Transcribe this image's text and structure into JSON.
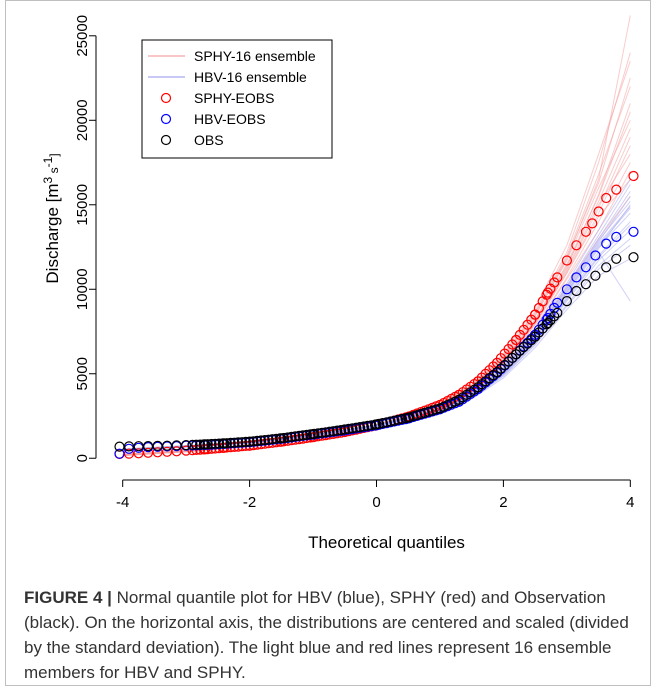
{
  "chart_data": {
    "type": "scatter",
    "xlabel": "Theoretical quantiles",
    "ylabel": "Discharge [m³ s⁻¹]",
    "ylabel_parts": {
      "base": "Discharge [m",
      "sup1": "3",
      "mid": " s",
      "sup2": "-1",
      "end": "]"
    },
    "xlim": [
      -4.2,
      4.2
    ],
    "ylim": [
      -400,
      27000
    ],
    "xticks": [
      -4,
      -2,
      0,
      2,
      4
    ],
    "xtick_labels": [
      "-4",
      "-2",
      "0",
      "2",
      "4"
    ],
    "yticks": [
      0,
      5000,
      10000,
      15000,
      20000,
      25000
    ],
    "ytick_labels": [
      "0",
      "5000",
      "10000",
      "15000",
      "20000",
      "25000"
    ],
    "grid": false,
    "legend_position": "top-left",
    "legend": [
      {
        "label": "SPHY-16 ensemble",
        "kind": "line",
        "color": "#f4a3a3"
      },
      {
        "label": "HBV-16 ensemble",
        "kind": "line",
        "color": "#a9a9f0"
      },
      {
        "label": "SPHY-EOBS",
        "kind": "point",
        "color": "#ff0000"
      },
      {
        "label": "HBV-EOBS",
        "kind": "point",
        "color": "#0000ff"
      },
      {
        "label": "OBS",
        "kind": "point",
        "color": "#000000"
      }
    ],
    "series": [
      {
        "name": "SPHY-EOBS",
        "color": "#ff0000",
        "x": [
          -4.05,
          -3.9,
          -3.75,
          -3.6,
          -3.45,
          -3.3,
          -3.15,
          -3.0,
          -2.7,
          -2.4,
          -2.0,
          -1.5,
          -1.0,
          -0.5,
          0.0,
          0.5,
          1.0,
          1.3,
          1.6,
          1.9,
          2.2,
          2.5,
          2.7,
          2.85,
          3.0,
          3.15,
          3.3,
          3.4,
          3.5,
          3.62,
          3.78,
          4.05
        ],
        "y": [
          250,
          270,
          290,
          320,
          350,
          380,
          410,
          450,
          530,
          620,
          750,
          980,
          1250,
          1550,
          1950,
          2450,
          3150,
          3750,
          4550,
          5650,
          7000,
          8500,
          9800,
          10700,
          11700,
          12600,
          13400,
          13900,
          14600,
          15400,
          15900,
          16700
        ]
      },
      {
        "name": "HBV-EOBS",
        "color": "#0000ff",
        "x": [
          -4.05,
          -3.9,
          -3.75,
          -3.6,
          -3.45,
          -3.3,
          -3.15,
          -3.0,
          -2.7,
          -2.4,
          -2.0,
          -1.5,
          -1.0,
          -0.5,
          0.0,
          0.5,
          1.0,
          1.3,
          1.6,
          1.9,
          2.2,
          2.5,
          2.7,
          2.85,
          3.0,
          3.15,
          3.3,
          3.45,
          3.62,
          3.78,
          4.05
        ],
        "y": [
          270,
          560,
          620,
          660,
          680,
          700,
          720,
          740,
          790,
          850,
          950,
          1150,
          1400,
          1650,
          1950,
          2350,
          2900,
          3350,
          4100,
          5050,
          6150,
          7300,
          8300,
          9200,
          10000,
          10700,
          11300,
          12000,
          12700,
          13100,
          13400
        ]
      },
      {
        "name": "OBS",
        "color": "#000000",
        "x": [
          -4.05,
          -3.9,
          -3.75,
          -3.6,
          -3.45,
          -3.3,
          -3.15,
          -3.0,
          -2.7,
          -2.4,
          -2.0,
          -1.5,
          -1.0,
          -0.5,
          0.0,
          0.5,
          1.0,
          1.3,
          1.6,
          1.9,
          2.2,
          2.5,
          2.7,
          2.85,
          3.0,
          3.15,
          3.3,
          3.45,
          3.62,
          3.78,
          4.05
        ],
        "y": [
          690,
          700,
          710,
          720,
          730,
          740,
          760,
          780,
          820,
          880,
          980,
          1180,
          1430,
          1700,
          2000,
          2400,
          2950,
          3450,
          4200,
          5100,
          6150,
          7200,
          8000,
          8600,
          9300,
          9900,
          10300,
          10800,
          11300,
          11800,
          11900
        ]
      }
    ],
    "ensembles": [
      {
        "name": "SPHY-16 ensemble",
        "color": "#f4a3a3",
        "x": [
          -4.0,
          -3.0,
          -2.0,
          -1.0,
          0.0,
          1.0,
          1.5,
          2.0,
          2.5,
          3.0,
          3.5,
          4.0
        ],
        "members_y": [
          [
            150,
            380,
            720,
            1200,
            1900,
            3100,
            4100,
            5800,
            8200,
            11500,
            15500,
            20500
          ],
          [
            200,
            420,
            760,
            1250,
            1950,
            3150,
            4200,
            5900,
            8400,
            11800,
            16500,
            26200
          ],
          [
            180,
            400,
            740,
            1220,
            1920,
            3050,
            4000,
            5600,
            7900,
            11000,
            14500,
            18500
          ],
          [
            220,
            440,
            780,
            1280,
            1980,
            3200,
            4300,
            6100,
            8700,
            12200,
            17500,
            24000
          ],
          [
            170,
            390,
            730,
            1210,
            1900,
            3000,
            3950,
            5500,
            7700,
            10600,
            13500,
            17000
          ],
          [
            240,
            460,
            800,
            1300,
            2000,
            3250,
            4350,
            6200,
            8900,
            12600,
            18000,
            23500
          ],
          [
            160,
            380,
            720,
            1190,
            1880,
            2950,
            3850,
            5300,
            7400,
            10200,
            13000,
            15500
          ],
          [
            210,
            430,
            770,
            1260,
            1960,
            3120,
            4150,
            5800,
            8200,
            11400,
            15200,
            19500
          ],
          [
            190,
            410,
            750,
            1240,
            1940,
            3080,
            4050,
            5700,
            8000,
            11100,
            14800,
            19000
          ],
          [
            230,
            450,
            790,
            1290,
            1990,
            3220,
            4280,
            6050,
            8600,
            12000,
            16800,
            22000
          ],
          [
            175,
            395,
            735,
            1215,
            1910,
            3020,
            3980,
            5550,
            7750,
            10700,
            14000,
            17500
          ],
          [
            205,
            425,
            765,
            1255,
            1955,
            3110,
            4120,
            5750,
            8100,
            11300,
            15600,
            21000
          ],
          [
            185,
            405,
            745,
            1230,
            1930,
            3060,
            4020,
            5650,
            7950,
            10950,
            14300,
            16500
          ],
          [
            215,
            435,
            775,
            1270,
            1970,
            3170,
            4220,
            5950,
            8450,
            11700,
            16000,
            20000
          ],
          [
            195,
            415,
            755,
            1245,
            1945,
            3090,
            4080,
            5720,
            8050,
            11200,
            15000,
            18000
          ],
          [
            225,
            445,
            785,
            1285,
            1985,
            3210,
            4260,
            6000,
            8550,
            11900,
            16300,
            22500
          ]
        ]
      },
      {
        "name": "HBV-16 ensemble",
        "color": "#a9a9f0",
        "x": [
          -4.0,
          -3.0,
          -2.0,
          -1.0,
          0.0,
          1.0,
          1.5,
          2.0,
          2.5,
          3.0,
          3.5,
          4.0
        ],
        "members_y": [
          [
            500,
            700,
            920,
            1350,
            1900,
            2850,
            3700,
            5100,
            7100,
            9700,
            12400,
            15000
          ],
          [
            520,
            720,
            940,
            1380,
            1930,
            2900,
            3800,
            5250,
            7300,
            10000,
            12800,
            15500
          ],
          [
            480,
            680,
            900,
            1320,
            1870,
            2800,
            3600,
            4950,
            6850,
            9300,
            11700,
            13500
          ],
          [
            540,
            740,
            960,
            1400,
            1950,
            2950,
            3850,
            5350,
            7450,
            10200,
            13200,
            16200
          ],
          [
            470,
            670,
            890,
            1300,
            1850,
            2760,
            3550,
            4850,
            6700,
            9000,
            11200,
            12600
          ],
          [
            510,
            710,
            930,
            1360,
            1910,
            2870,
            3750,
            5150,
            7200,
            9850,
            12600,
            14800
          ],
          [
            490,
            690,
            910,
            1340,
            1890,
            2830,
            3650,
            5000,
            6950,
            9450,
            12000,
            14000
          ],
          [
            530,
            730,
            950,
            1390,
            1940,
            2920,
            3820,
            5300,
            7380,
            10100,
            13000,
            15800
          ],
          [
            460,
            660,
            880,
            1290,
            1840,
            2740,
            3500,
            4750,
            6550,
            8800,
            10800,
            11800
          ],
          [
            550,
            750,
            970,
            1410,
            1960,
            2970,
            3900,
            5400,
            7550,
            10350,
            13500,
            16500
          ],
          [
            505,
            705,
            925,
            1355,
            1905,
            2860,
            3720,
            5120,
            7150,
            9800,
            12500,
            14500
          ],
          [
            485,
            685,
            905,
            1330,
            1880,
            2820,
            3630,
            4980,
            6900,
            9400,
            11900,
            13800
          ],
          [
            525,
            725,
            945,
            1385,
            1935,
            2910,
            3810,
            5280,
            7350,
            10050,
            12900,
            15200
          ],
          [
            475,
            675,
            895,
            1310,
            1860,
            2780,
            3580,
            4900,
            6750,
            9100,
            11400,
            13000
          ],
          [
            515,
            715,
            935,
            1370,
            1920,
            2880,
            3760,
            5200,
            7250,
            9900,
            12700,
            14900
          ],
          [
            495,
            695,
            915,
            1345,
            1895,
            2840,
            3670,
            5050,
            7000,
            9550,
            12200,
            9300
          ]
        ]
      }
    ]
  },
  "caption": {
    "label": "FIGURE 4 |",
    "text": " Normal quantile plot for HBV (blue), SPHY (red) and Observation (black). On the horizontal axis, the distributions are centered and scaled (divided by the standard deviation). The light blue and red lines represent 16 ensemble members for HBV and SPHY."
  }
}
